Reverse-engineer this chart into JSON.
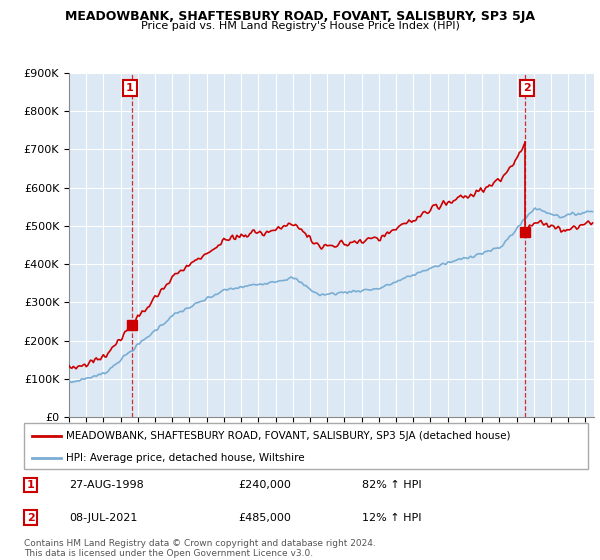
{
  "title": "MEADOWBANK, SHAFTESBURY ROAD, FOVANT, SALISBURY, SP3 5JA",
  "subtitle": "Price paid vs. HM Land Registry's House Price Index (HPI)",
  "hpi_label": "HPI: Average price, detached house, Wiltshire",
  "property_label": "MEADOWBANK, SHAFTESBURY ROAD, FOVANT, SALISBURY, SP3 5JA (detached house)",
  "footer1": "Contains HM Land Registry data © Crown copyright and database right 2024.",
  "footer2": "This data is licensed under the Open Government Licence v3.0.",
  "annotation1": {
    "num": "1",
    "date": "27-AUG-1998",
    "price": "£240,000",
    "hpi": "82% ↑ HPI"
  },
  "annotation2": {
    "num": "2",
    "date": "08-JUL-2021",
    "price": "£485,000",
    "hpi": "12% ↑ HPI"
  },
  "hpi_color": "#7aadd4",
  "property_color": "#cc0000",
  "annotation_color": "#cc0000",
  "plot_bg_color": "#dce9f5",
  "background_color": "#ffffff",
  "grid_color": "#ffffff",
  "ylim": [
    0,
    900000
  ],
  "xlim_start": 1995.0,
  "xlim_end": 2025.5,
  "sale1_year": 1998.64,
  "sale1_price": 240000,
  "sale2_year": 2021.5,
  "sale2_price": 485000
}
